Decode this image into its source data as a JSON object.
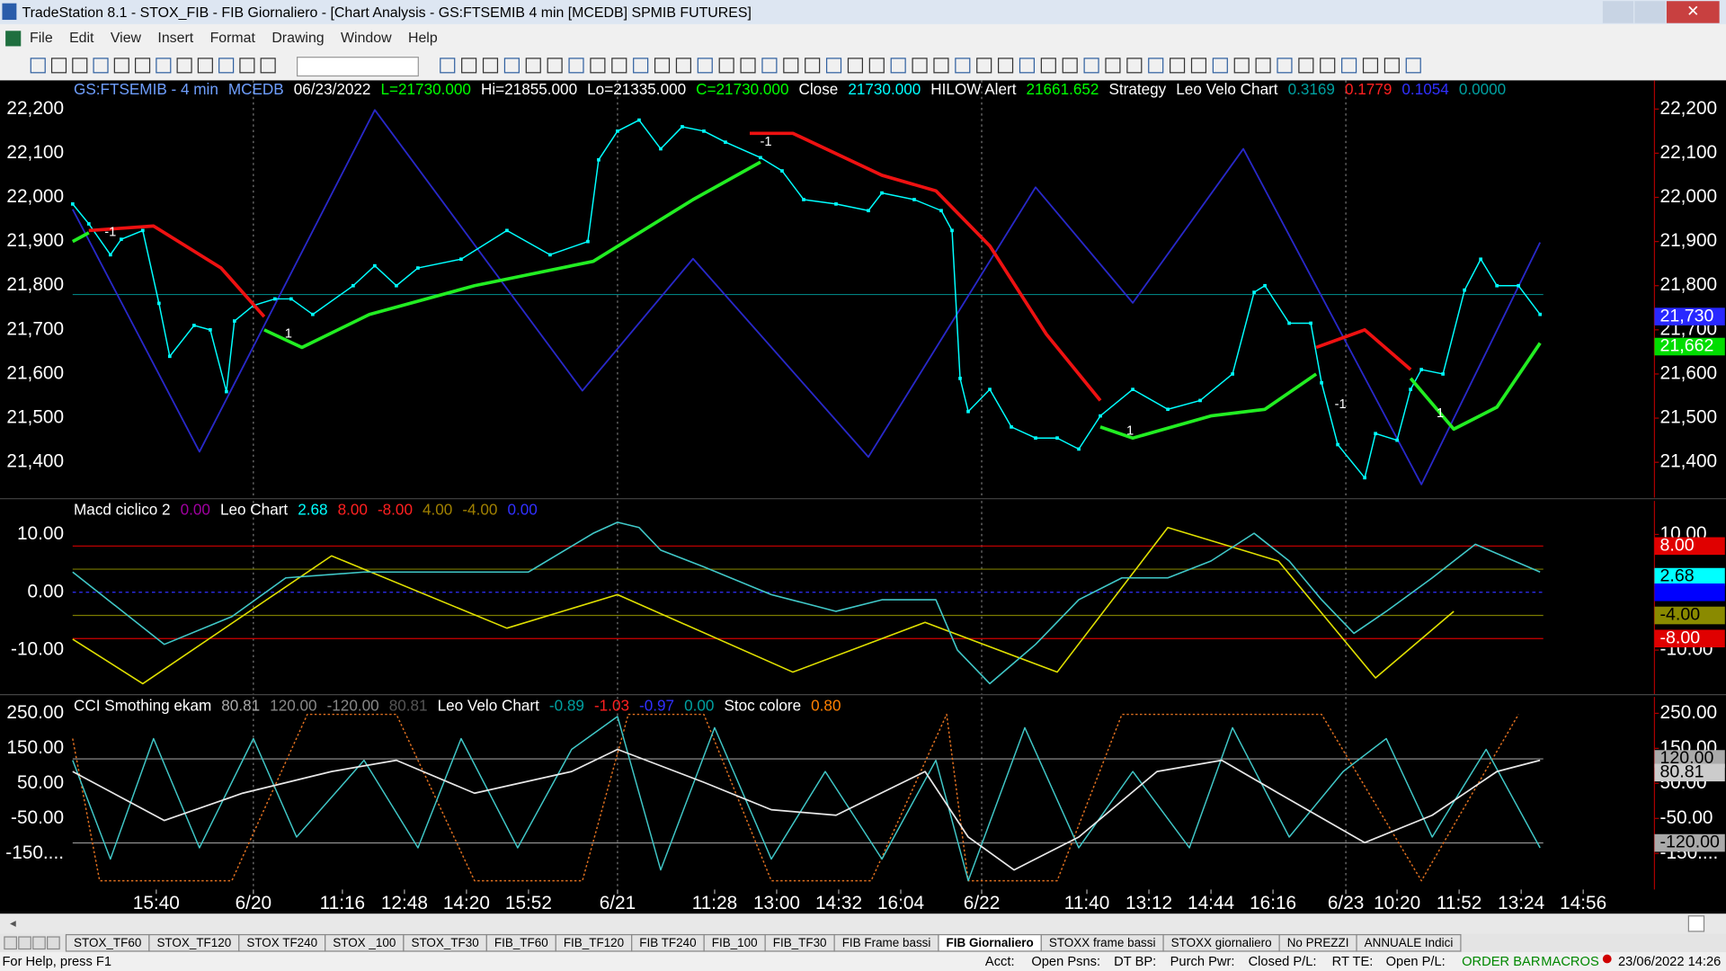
{
  "window": {
    "title": "TradeStation 8.1 - STOX_FIB - FIB Giornaliero - [Chart Analysis - GS:FTSEMIB  4 min  [MCEDB] SPMIB FUTURES]"
  },
  "menu": [
    "File",
    "Edit",
    "View",
    "Insert",
    "Format",
    "Drawing",
    "Window",
    "Help"
  ],
  "chart_data": [
    {
      "type": "line",
      "legend_text": [
        {
          "text": "GS:FTSEMIB - 4 min",
          "color": "#6f9fff"
        },
        {
          "text": "MCEDB",
          "color": "#6f9fff"
        },
        {
          "text": "06/23/2022",
          "color": "#ffffff"
        },
        {
          "text": "L=21730.000",
          "color": "#00ff00"
        },
        {
          "text": "Hi=21855.000",
          "color": "#ffffff"
        },
        {
          "text": "Lo=21335.000",
          "color": "#ffffff"
        },
        {
          "text": "C=21730.000",
          "color": "#00ff00"
        },
        {
          "text": "Close",
          "color": "#ffffff"
        },
        {
          "text": "21730.000",
          "color": "#00ffff"
        },
        {
          "text": "HILOW Alert",
          "color": "#ffffff"
        },
        {
          "text": "21661.652",
          "color": "#00ff00"
        },
        {
          "text": "Strategy",
          "color": "#ffffff"
        },
        {
          "text": "Leo Velo Chart",
          "color": "#ffffff"
        },
        {
          "text": "0.3169",
          "color": "#00a0a0"
        },
        {
          "text": "0.1779",
          "color": "#ff2020"
        },
        {
          "text": "0.1054",
          "color": "#3030ff"
        },
        {
          "text": "0.0000",
          "color": "#00a0a0"
        }
      ],
      "xlim": [
        0,
        586
      ],
      "ylim": [
        21320,
        22265
      ],
      "yticks": [
        {
          "value": 21400,
          "label": "21,400"
        },
        {
          "value": 21500,
          "label": "21,500"
        },
        {
          "value": 21600,
          "label": "21,600"
        },
        {
          "value": 21700,
          "label": "21,700"
        },
        {
          "value": 21800,
          "label": "21,800"
        },
        {
          "value": 21900,
          "label": "21,900"
        },
        {
          "value": 22000,
          "label": "22,000"
        },
        {
          "value": 22100,
          "label": "22,100"
        },
        {
          "value": 22200,
          "label": "22,200"
        }
      ],
      "levels": [
        {
          "value": 21780,
          "color": "#008080"
        }
      ],
      "markers": [
        {
          "value": 21730,
          "label": "21,730",
          "bg": "#2828ff",
          "fg": "#ffffff"
        },
        {
          "value": 21662,
          "label": "21,662",
          "bg": "#00dd00",
          "fg": "#ffffff"
        }
      ],
      "series": [
        {
          "color": "#2828c8",
          "width": 1.5,
          "style": "solid",
          "x": [
            0,
            47,
            112,
            189,
            230,
            295,
            357,
            393,
            434,
            500,
            544
          ],
          "values": [
            21973,
            21424,
            22198,
            21562,
            21861,
            21412,
            22023,
            21761,
            22110,
            21350,
            21898
          ]
        },
        {
          "color": "#00ffff",
          "width": 1.2,
          "style": "solid",
          "points": true,
          "x": [
            0,
            6,
            14,
            18,
            26,
            32,
            36,
            45,
            51,
            57,
            60,
            67,
            75,
            81,
            89,
            104,
            112,
            120,
            128,
            144,
            161,
            177,
            191,
            195,
            202,
            210,
            218,
            226,
            234,
            242,
            255,
            263,
            271,
            283,
            295,
            300,
            312,
            322,
            326,
            329,
            332,
            340,
            348,
            357,
            365,
            373,
            381,
            393,
            406,
            418,
            430,
            438,
            442,
            451,
            459,
            463,
            469,
            479,
            483,
            491,
            496,
            500,
            508,
            516,
            522,
            528,
            536,
            544
          ],
          "values": [
            21985,
            21940,
            21870,
            21905,
            21925,
            21760,
            21640,
            21710,
            21700,
            21560,
            21720,
            21755,
            21770,
            21770,
            21735,
            21800,
            21845,
            21800,
            21840,
            21860,
            21925,
            21870,
            21900,
            22085,
            22150,
            22175,
            22110,
            22160,
            22150,
            22125,
            22090,
            22060,
            21995,
            21985,
            21970,
            22010,
            21995,
            21970,
            21925,
            21590,
            21515,
            21565,
            21480,
            21455,
            21455,
            21430,
            21505,
            21565,
            21520,
            21540,
            21600,
            21785,
            21800,
            21715,
            21715,
            21580,
            21440,
            21365,
            21465,
            21450,
            21565,
            21610,
            21600,
            21790,
            21860,
            21800,
            21800,
            21735
          ]
        },
        {
          "color": "#22ee22",
          "width": 3,
          "style": "solid",
          "x": [
            0,
            6,
            38,
            71,
            85,
            110,
            149,
            193,
            230,
            255,
            318,
            381,
            393,
            422,
            442,
            461,
            478,
            496,
            512,
            528,
            544
          ],
          "values": [
            21900,
            21920,
            null,
            21700,
            21660,
            21735,
            21800,
            21855,
            21995,
            22080,
            null,
            21480,
            21455,
            21505,
            21520,
            21600,
            null,
            21590,
            21475,
            21525,
            21670
          ]
        },
        {
          "color": "#ee1111",
          "width": 3,
          "style": "solid",
          "x": [
            6,
            30,
            55,
            71,
            161,
            251,
            267,
            300,
            320,
            340,
            361,
            381,
            421,
            461,
            479,
            496
          ],
          "values": [
            21925,
            21935,
            21840,
            21730,
            null,
            22145,
            22145,
            22050,
            22015,
            21890,
            21690,
            21540,
            null,
            21660,
            21700,
            21610
          ]
        }
      ],
      "annotations": [
        {
          "text": "-1",
          "x": 14,
          "y": 21920
        },
        {
          "text": "1",
          "x": 80,
          "y": 21690
        },
        {
          "text": "-1",
          "x": 257,
          "y": 22125
        },
        {
          "text": "1",
          "x": 392,
          "y": 21470
        },
        {
          "text": "-1",
          "x": 470,
          "y": 21530
        },
        {
          "text": "1",
          "x": 507,
          "y": 21510
        }
      ]
    },
    {
      "type": "line",
      "legend_text": [
        {
          "text": "Macd ciclico 2",
          "color": "#ffffff"
        },
        {
          "text": "0.00",
          "color": "#a000a0"
        },
        {
          "text": "Leo Chart",
          "color": "#ffffff"
        },
        {
          "text": "2.68",
          "color": "#00ffff"
        },
        {
          "text": "8.00",
          "color": "#ff2020"
        },
        {
          "text": "-8.00",
          "color": "#ff2020"
        },
        {
          "text": "4.00",
          "color": "#a08000"
        },
        {
          "text": "-4.00",
          "color": "#a08000"
        },
        {
          "text": "0.00",
          "color": "#3030ff"
        }
      ],
      "xlim": [
        0,
        586
      ],
      "ylim": [
        -17.7,
        15.8
      ],
      "yticks": [
        {
          "value": -10,
          "label": "-10.00"
        },
        {
          "value": 0,
          "label": "0.00"
        },
        {
          "value": 10,
          "label": "10.00"
        }
      ],
      "levels": [
        {
          "value": 8,
          "color": "#d00000"
        },
        {
          "value": 4,
          "color": "#7a7a00"
        },
        {
          "value": 0,
          "color": "#3030ff",
          "dashed": true
        },
        {
          "value": -4,
          "color": "#7a7a00"
        },
        {
          "value": -8,
          "color": "#d00000"
        }
      ],
      "markers": [
        {
          "value": 8,
          "label": "8.00",
          "bg": "#e00000",
          "fg": "#ffffff"
        },
        {
          "value": 2.68,
          "label": "2.68",
          "bg": "#00ffff",
          "fg": "#000000"
        },
        {
          "value": 0,
          "bg": "#0000ff"
        },
        {
          "value": -4,
          "label": "-4.00",
          "bg": "#8a8a00",
          "fg": "#000000"
        },
        {
          "value": -8,
          "label": "-8.00",
          "bg": "#e00000",
          "fg": "#ffffff"
        }
      ],
      "series": [
        {
          "color": "#e0e000",
          "width": 1.3,
          "style": "solid",
          "x": [
            0,
            26,
            96,
            161,
            202,
            267,
            316,
            365,
            406,
            447,
            483,
            512
          ],
          "values": [
            -8.1,
            -15.8,
            6.3,
            -6.2,
            -0.4,
            -13.8,
            -5.2,
            -13.8,
            11.2,
            5.4,
            -14.8,
            -3.3
          ]
        },
        {
          "color": "#40c8c8",
          "width": 1.3,
          "style": "solid",
          "x": [
            0,
            34,
            59,
            79,
            108,
            136,
            169,
            193,
            202,
            210,
            218,
            234,
            259,
            283,
            300,
            320,
            328,
            340,
            357,
            373,
            389,
            406,
            422,
            438,
            451,
            463,
            475,
            487,
            504,
            520,
            544
          ],
          "values": [
            3.5,
            -9.0,
            -4.2,
            2.5,
            3.5,
            3.5,
            3.5,
            10.2,
            12.1,
            11.2,
            7.3,
            4.4,
            -0.4,
            -3.3,
            -1.3,
            -1.3,
            -10.0,
            -15.8,
            -9.0,
            -1.3,
            2.5,
            2.5,
            5.4,
            10.2,
            5.4,
            -1.3,
            -7.1,
            -3.3,
            2.5,
            8.3,
            3.5
          ]
        }
      ]
    },
    {
      "type": "line",
      "legend_text": [
        {
          "text": "CCI Smothing ekam",
          "color": "#ffffff"
        },
        {
          "text": "80.81",
          "color": "#aaaaaa"
        },
        {
          "text": "120.00",
          "color": "#888888"
        },
        {
          "text": "-120.00",
          "color": "#888888"
        },
        {
          "text": "80.81",
          "color": "#555555"
        },
        {
          "text": "Leo Velo Chart",
          "color": "#ffffff"
        },
        {
          "text": "-0.89",
          "color": "#00a0a0"
        },
        {
          "text": "-1.03",
          "color": "#ff2020"
        },
        {
          "text": "-0.97",
          "color": "#3030ff"
        },
        {
          "text": "0.00",
          "color": "#00a0a0"
        },
        {
          "text": "Stoc colore",
          "color": "#ffffff"
        },
        {
          "text": "0.80",
          "color": "#ff8000"
        }
      ],
      "xlim": [
        0,
        586
      ],
      "ylim": [
        -253,
        297
      ],
      "yticks": [
        {
          "value": -150,
          "label": "-150...."
        },
        {
          "value": -50,
          "label": "-50.00"
        },
        {
          "value": 50,
          "label": "50.00"
        },
        {
          "value": 150,
          "label": "150.00"
        },
        {
          "value": 250,
          "label": "250.00"
        }
      ],
      "xticks": [
        {
          "value": 31,
          "label": "15:40"
        },
        {
          "value": 67,
          "label": "6/20"
        },
        {
          "value": 100,
          "label": "11:16"
        },
        {
          "value": 123,
          "label": "12:48"
        },
        {
          "value": 146,
          "label": "14:20"
        },
        {
          "value": 169,
          "label": "15:52"
        },
        {
          "value": 202,
          "label": "6/21"
        },
        {
          "value": 238,
          "label": "11:28"
        },
        {
          "value": 261,
          "label": "13:00"
        },
        {
          "value": 284,
          "label": "14:32"
        },
        {
          "value": 307,
          "label": "16:04"
        },
        {
          "value": 337,
          "label": "6/22"
        },
        {
          "value": 376,
          "label": "11:40"
        },
        {
          "value": 399,
          "label": "13:12"
        },
        {
          "value": 422,
          "label": "14:44"
        },
        {
          "value": 445,
          "label": "16:16"
        },
        {
          "value": 472,
          "label": "6/23"
        },
        {
          "value": 491,
          "label": "10:20"
        },
        {
          "value": 514,
          "label": "11:52"
        },
        {
          "value": 537,
          "label": "13:24"
        },
        {
          "value": 560,
          "label": "14:56"
        }
      ],
      "levels": [
        {
          "value": 120,
          "color": "#999999"
        },
        {
          "value": -120,
          "color": "#999999"
        }
      ],
      "markers": [
        {
          "value": 120,
          "label": "120.00",
          "bg": "#aaaaaa",
          "fg": "#000000"
        },
        {
          "value": 80.81,
          "label": "80.81",
          "bg": "#cccccc",
          "fg": "#000000"
        },
        {
          "value": -120,
          "label": "-120.00",
          "bg": "#aaaaaa",
          "fg": "#000000"
        }
      ],
      "series": [
        {
          "color": "#e07020",
          "width": 1.2,
          "style": "dotted",
          "x": [
            0,
            10,
            59,
            87,
            120,
            149,
            189,
            206,
            234,
            259,
            296,
            324,
            332,
            365,
            389,
            463,
            500,
            536
          ],
          "values": [
            178,
            -228,
            -228,
            247,
            247,
            -228,
            -228,
            247,
            247,
            -228,
            -228,
            247,
            -228,
            -228,
            247,
            247,
            -228,
            247
          ]
        },
        {
          "color": "#40c8c8",
          "width": 1.2,
          "style": "solid",
          "x": [
            0,
            14,
            30,
            47,
            67,
            83,
            108,
            128,
            144,
            165,
            185,
            202,
            218,
            238,
            259,
            279,
            300,
            320,
            332,
            353,
            373,
            393,
            414,
            430,
            451,
            471,
            487,
            504,
            524,
            544
          ],
          "values": [
            116,
            -166,
            178,
            -134,
            178,
            -103,
            116,
            -134,
            178,
            -134,
            147,
            241,
            -197,
            209,
            -166,
            84,
            -166,
            116,
            -228,
            209,
            -134,
            84,
            -134,
            209,
            -103,
            84,
            178,
            -103,
            147,
            -134
          ]
        },
        {
          "color": "#e8e8e8",
          "width": 1.4,
          "style": "solid",
          "x": [
            0,
            34,
            63,
            96,
            120,
            149,
            185,
            202,
            234,
            259,
            283,
            316,
            332,
            349,
            373,
            402,
            426,
            447,
            479,
            504,
            528,
            544
          ],
          "values": [
            84,
            -56,
            22,
            84,
            116,
            22,
            84,
            147,
            53,
            -25,
            -41,
            84,
            -103,
            -197,
            -103,
            84,
            116,
            22,
            -119,
            -41,
            84,
            116
          ]
        }
      ]
    }
  ],
  "tabs": [
    "STOX_TF60",
    "STOX_TF120",
    "STOX TF240",
    "STOX _100",
    "STOX_TF30",
    "FIB_TF60",
    "FIB_TF120",
    "FIB TF240",
    "FIB_100",
    "FIB_TF30",
    "FIB Frame bassi",
    "FIB Giornaliero",
    "STOXX frame bassi",
    "STOXX giornaliero",
    "No PREZZI",
    "ANNUALE Indici"
  ],
  "active_tab": "FIB Giornaliero",
  "status": [
    "For Help, press F1",
    "Acct:",
    "Open Psns:",
    "DT BP:",
    "Purch Pwr:",
    "Closed P/L:",
    "RT TE:",
    "Open P/L:",
    "ORDER BAR",
    "MACROS",
    "23/06/2022 14:26"
  ]
}
